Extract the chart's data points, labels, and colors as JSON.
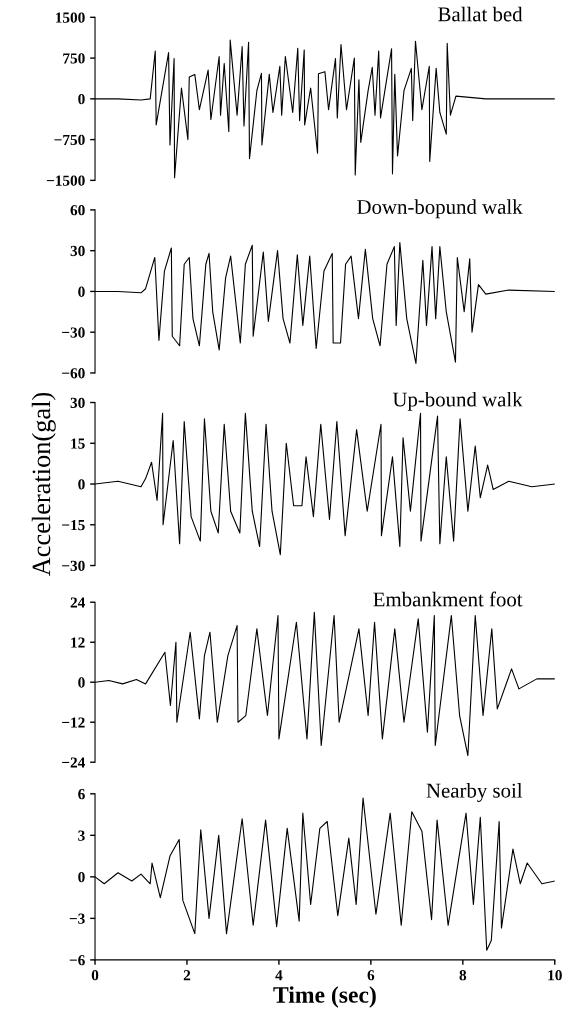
{
  "chart_data": [
    {
      "type": "line",
      "title": "Ballat bed",
      "xlim": [
        0,
        10
      ],
      "ylim": [
        -1500,
        1500
      ],
      "yticks": [
        -1500,
        -750,
        0,
        750,
        1500
      ],
      "tick_labels": "y",
      "grid": false,
      "series": [
        {
          "color": "#000000",
          "x": [
            0,
            0.5,
            1.0,
            1.2,
            1.31,
            1.33,
            1.6,
            1.63,
            1.72,
            1.73,
            1.88,
            2.02,
            2.05,
            2.17,
            2.27,
            2.46,
            2.52,
            2.7,
            2.73,
            2.81,
            2.91,
            2.94,
            3.09,
            3.2,
            3.24,
            3.34,
            3.36,
            3.52,
            3.62,
            3.63,
            3.79,
            3.87,
            4.02,
            4.06,
            4.14,
            4.3,
            4.41,
            4.45,
            4.55,
            4.56,
            4.69,
            4.84,
            4.86,
            5.0,
            5.08,
            5.23,
            5.27,
            5.35,
            5.47,
            5.64,
            5.66,
            5.74,
            5.78,
            5.94,
            6.03,
            6.09,
            6.17,
            6.21,
            6.45,
            6.47,
            6.52,
            6.58,
            6.72,
            6.88,
            6.91,
            6.97,
            7.11,
            7.27,
            7.28,
            7.42,
            7.5,
            7.64,
            7.66,
            7.73,
            7.85,
            8.5,
            10
          ],
          "values": [
            0,
            0,
            -20,
            0,
            880,
            -480,
            850,
            -850,
            740,
            -1450,
            200,
            -750,
            400,
            450,
            -200,
            530,
            -380,
            780,
            -300,
            650,
            -600,
            1080,
            -300,
            960,
            -500,
            1040,
            -1100,
            150,
            470,
            -850,
            450,
            -250,
            600,
            -300,
            780,
            -250,
            930,
            -400,
            900,
            -480,
            200,
            -1000,
            460,
            500,
            -200,
            740,
            -350,
            1000,
            -200,
            750,
            -1400,
            350,
            -800,
            150,
            580,
            -300,
            880,
            -350,
            920,
            -1380,
            450,
            -1050,
            150,
            560,
            -400,
            1060,
            -200,
            600,
            -1150,
            560,
            -250,
            -650,
            1020,
            -300,
            50,
            0,
            0
          ]
        }
      ]
    },
    {
      "type": "line",
      "title": "Down-bopund walk",
      "xlim": [
        0,
        10
      ],
      "ylim": [
        -60,
        60
      ],
      "yticks": [
        -60,
        -30,
        0,
        30,
        60
      ],
      "tick_labels": "y",
      "grid": false,
      "series": [
        {
          "color": "#000000",
          "x": [
            0,
            0.5,
            1.0,
            1.1,
            1.3,
            1.39,
            1.51,
            1.66,
            1.68,
            1.84,
            1.94,
            2.05,
            2.13,
            2.27,
            2.41,
            2.48,
            2.56,
            2.7,
            2.84,
            2.95,
            3.16,
            3.27,
            3.42,
            3.44,
            3.66,
            3.77,
            3.97,
            4.09,
            4.24,
            4.4,
            4.52,
            4.67,
            4.81,
            4.98,
            5.16,
            5.18,
            5.34,
            5.45,
            5.57,
            5.73,
            5.88,
            6.04,
            6.2,
            6.35,
            6.51,
            6.55,
            6.63,
            6.78,
            6.98,
            7.13,
            7.21,
            7.33,
            7.41,
            7.5,
            7.64,
            7.84,
            7.88,
            8.03,
            8.15,
            8.2,
            8.34,
            8.5,
            9.0,
            10
          ],
          "values": [
            0,
            0,
            -1,
            2,
            25,
            -36,
            15,
            32,
            -33,
            -40,
            20,
            25,
            -20,
            -40,
            20,
            28,
            -15,
            -43,
            10,
            26,
            -38,
            20,
            34,
            -33,
            29,
            -22,
            30,
            -20,
            -38,
            27,
            -25,
            26,
            -42,
            15,
            28,
            -38,
            -38,
            20,
            26,
            -20,
            31,
            -20,
            -40,
            20,
            33,
            -25,
            36,
            -20,
            -53,
            23,
            -25,
            33,
            -20,
            33,
            -15,
            -52,
            25,
            -15,
            24,
            -30,
            5,
            -2,
            1,
            0
          ]
        }
      ]
    },
    {
      "type": "line",
      "title": "Up-bound walk",
      "ylabel": "Acceleration(gal)",
      "xlim": [
        0,
        10
      ],
      "ylim": [
        -30,
        30
      ],
      "yticks": [
        -30,
        -15,
        0,
        15,
        30
      ],
      "tick_labels": "y",
      "grid": false,
      "series": [
        {
          "color": "#000000",
          "x": [
            0,
            0.5,
            1.0,
            1.1,
            1.23,
            1.35,
            1.47,
            1.48,
            1.7,
            1.84,
            1.94,
            2.09,
            2.29,
            2.38,
            2.52,
            2.68,
            2.81,
            2.95,
            3.15,
            3.27,
            3.42,
            3.58,
            3.72,
            3.85,
            4.03,
            4.16,
            4.32,
            4.5,
            4.59,
            4.75,
            4.91,
            5.1,
            5.26,
            5.44,
            5.69,
            5.92,
            6.22,
            6.23,
            6.47,
            6.63,
            6.7,
            6.86,
            7.08,
            7.09,
            7.45,
            7.5,
            7.64,
            7.8,
            7.94,
            8.11,
            8.27,
            8.38,
            8.54,
            8.66,
            9.0,
            9.5,
            10
          ],
          "values": [
            0,
            1,
            -1,
            2,
            8,
            -6,
            26,
            -15,
            16,
            -22,
            23,
            -12,
            -21,
            24,
            -10,
            -18,
            22,
            -10,
            -18,
            26,
            -10,
            -23,
            22,
            -10,
            -26,
            15,
            -8,
            -8,
            10,
            -12,
            22,
            -13,
            23,
            -19,
            20,
            -10,
            22,
            -19,
            10,
            -23,
            17,
            -10,
            26,
            -21,
            25,
            -22,
            10,
            -21,
            24,
            -10,
            14,
            -5,
            7,
            -2,
            1,
            -1,
            0
          ]
        }
      ]
    },
    {
      "type": "line",
      "title": "Embankment foot",
      "xlim": [
        0,
        10
      ],
      "ylim": [
        -24,
        24
      ],
      "yticks": [
        -24,
        -12,
        0,
        12,
        24
      ],
      "tick_labels": "y",
      "grid": false,
      "series": [
        {
          "color": "#000000",
          "x": [
            0,
            0.3,
            0.6,
            0.9,
            1.1,
            1.52,
            1.64,
            1.76,
            1.78,
            2.07,
            2.27,
            2.38,
            2.5,
            2.66,
            2.89,
            3.09,
            3.11,
            3.28,
            3.52,
            3.75,
            3.98,
            4.0,
            4.38,
            4.61,
            4.77,
            4.92,
            5.2,
            5.31,
            5.51,
            5.74,
            5.94,
            6.08,
            6.25,
            6.52,
            6.72,
            7.03,
            7.23,
            7.38,
            7.4,
            7.75,
            7.93,
            8.11,
            8.27,
            8.44,
            8.63,
            8.75,
            9.06,
            9.22,
            9.61,
            10
          ],
          "values": [
            0,
            0.5,
            -0.5,
            0.8,
            -0.5,
            9,
            -7,
            12,
            -12,
            15,
            -11,
            8,
            15,
            -12,
            8,
            17,
            -12,
            -10,
            16,
            -10,
            20,
            -17,
            18,
            -17,
            21,
            -19,
            20,
            -12,
            1,
            16,
            -10,
            18,
            -17,
            16,
            -12,
            19,
            -15,
            20,
            -19,
            20,
            -10,
            -22,
            20,
            -10,
            16,
            -8,
            4,
            -2,
            1,
            1
          ]
        }
      ]
    },
    {
      "type": "line",
      "title": "Nearby soil",
      "xlabel": "Time (sec)",
      "xlim": [
        0,
        10
      ],
      "xticks": [
        0,
        2,
        4,
        6,
        8,
        10
      ],
      "ylim": [
        -6,
        6
      ],
      "yticks": [
        -6,
        -3,
        0,
        3,
        6
      ],
      "grid": false,
      "series": [
        {
          "color": "#000000",
          "x": [
            0,
            0.2,
            0.5,
            0.8,
            1.0,
            1.2,
            1.24,
            1.42,
            1.63,
            1.83,
            1.91,
            2.17,
            2.3,
            2.48,
            2.69,
            2.86,
            3.2,
            3.44,
            3.71,
            3.95,
            4.18,
            4.44,
            4.52,
            4.69,
            4.89,
            5.05,
            5.28,
            5.52,
            5.68,
            5.83,
            6.11,
            6.42,
            6.66,
            6.89,
            7.11,
            7.32,
            7.44,
            7.68,
            8.07,
            8.23,
            8.38,
            8.52,
            8.62,
            8.79,
            8.84,
            9.09,
            9.25,
            9.4,
            9.72,
            10
          ],
          "values": [
            0,
            -0.5,
            0.3,
            -0.3,
            0.2,
            -0.5,
            1,
            -1.5,
            1.5,
            2.7,
            -1.7,
            -4.1,
            3.4,
            -3,
            3,
            -4.1,
            4.2,
            -3.5,
            4.1,
            -3.6,
            3.5,
            -3.2,
            4.6,
            -2,
            3.5,
            4.0,
            -2.8,
            2.8,
            -2,
            5.7,
            -2.7,
            4.6,
            -3.5,
            4.7,
            3.3,
            -3.1,
            4.1,
            -3.5,
            4.6,
            -2,
            4.3,
            -5.3,
            -4.6,
            4,
            -3.7,
            2,
            -0.5,
            1,
            -0.5,
            -0.3
          ]
        }
      ]
    }
  ]
}
